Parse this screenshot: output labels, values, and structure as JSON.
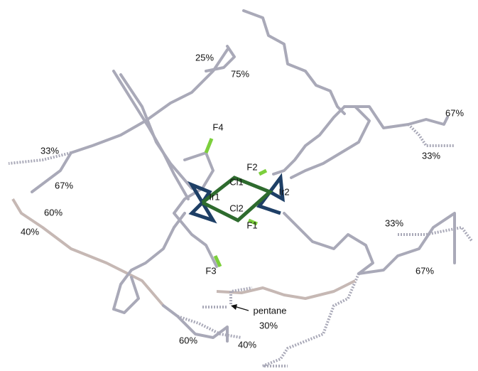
{
  "labels": [
    "25%",
    "75%",
    "67%",
    "33%",
    "33%",
    "67%",
    "F4",
    "F2",
    "Cl1",
    "Ir1",
    "Ir2",
    "Cl2",
    "F1",
    "60%",
    "40%",
    "33%",
    "67%",
    "F3",
    "pentane",
    "30%",
    "60%",
    "40%"
  ]
}
